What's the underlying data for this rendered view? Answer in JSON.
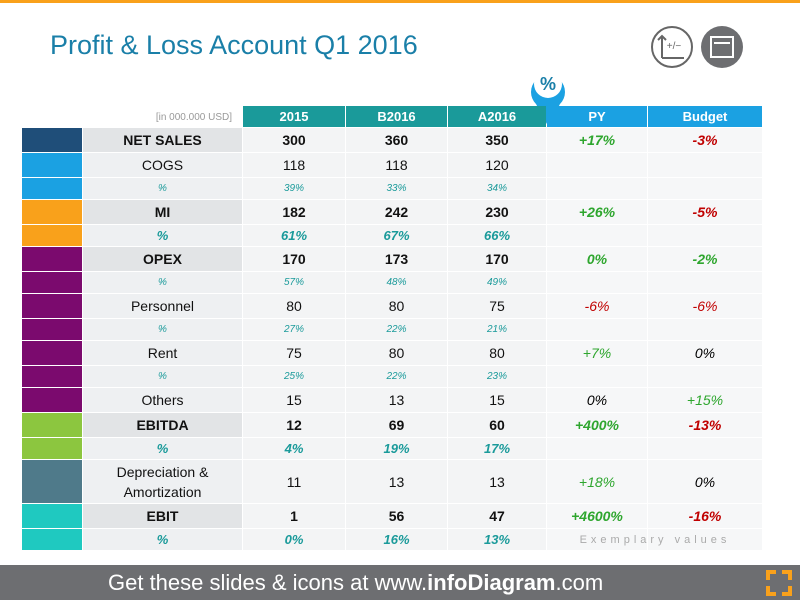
{
  "title": "Profit & Loss Account Q1 2016",
  "marker": "%",
  "table": {
    "unit": "[in 000.000 USD]",
    "columns": [
      "2015",
      "B2016",
      "A2016",
      "PY",
      "Budget"
    ],
    "note": "Exemplary values",
    "rows": [
      {
        "label": "NET SALES",
        "color": "#1f4e79",
        "bold": true,
        "values": [
          "300",
          "360",
          "350"
        ],
        "py": "+17%",
        "py_color": "#2ea62e",
        "budget": "-3%",
        "budget_color": "#c00000"
      },
      {
        "label": "COGS",
        "color": "#1ba1e2",
        "values": [
          "118",
          "118",
          "120"
        ]
      },
      {
        "label": "%",
        "color": "#1ba1e2",
        "pct": true,
        "values": [
          "39%",
          "33%",
          "34%"
        ]
      },
      {
        "label": "MI",
        "color": "#f9a11b",
        "bold": true,
        "values": [
          "182",
          "242",
          "230"
        ],
        "py": "+26%",
        "py_color": "#2ea62e",
        "budget": "-5%",
        "budget_color": "#c00000"
      },
      {
        "label": "%",
        "color": "#f9a11b",
        "pct": true,
        "bold": true,
        "values": [
          "61%",
          "67%",
          "66%"
        ]
      },
      {
        "label": "OPEX",
        "color": "#7b0a6e",
        "bold": true,
        "values": [
          "170",
          "173",
          "170"
        ],
        "py": "0%",
        "py_color": "#2ea62e",
        "budget": "-2%",
        "budget_color": "#2ea62e"
      },
      {
        "label": "%",
        "color": "#7b0a6e",
        "pct": true,
        "values": [
          "57%",
          "48%",
          "49%"
        ]
      },
      {
        "label": "Personnel",
        "color": "#7b0a6e",
        "values": [
          "80",
          "80",
          "75"
        ],
        "py": "-6%",
        "py_color": "#c00000",
        "budget": "-6%",
        "budget_color": "#c00000"
      },
      {
        "label": "%",
        "color": "#7b0a6e",
        "pct": true,
        "values": [
          "27%",
          "22%",
          "21%"
        ]
      },
      {
        "label": "Rent",
        "color": "#7b0a6e",
        "values": [
          "75",
          "80",
          "80"
        ],
        "py": "+7%",
        "py_color": "#2ea62e",
        "budget": "0%",
        "budget_color": "#000000"
      },
      {
        "label": "%",
        "color": "#7b0a6e",
        "pct": true,
        "values": [
          "25%",
          "22%",
          "23%"
        ]
      },
      {
        "label": "Others",
        "color": "#7b0a6e",
        "values": [
          "15",
          "13",
          "15"
        ],
        "py": "0%",
        "py_color": "#000000",
        "budget": "+15%",
        "budget_color": "#2ea62e"
      },
      {
        "label": "EBITDA",
        "color": "#8cc63f",
        "bold": true,
        "values": [
          "12",
          "69",
          "60"
        ],
        "py": "+400%",
        "py_color": "#2ea62e",
        "budget": "-13%",
        "budget_color": "#c00000"
      },
      {
        "label": "%",
        "color": "#8cc63f",
        "pct": true,
        "bold": true,
        "values": [
          "4%",
          "19%",
          "17%"
        ]
      },
      {
        "label": "Depreciation & Amortization",
        "color": "#4f7a8a",
        "tall": true,
        "values": [
          "11",
          "13",
          "13"
        ],
        "py": "+18%",
        "py_color": "#2ea62e",
        "budget": "0%",
        "budget_color": "#000000"
      },
      {
        "label": "EBIT",
        "color": "#1fc9c0",
        "bold": true,
        "values": [
          "1",
          "56",
          "47"
        ],
        "py": "+4600%",
        "py_color": "#2ea62e",
        "budget": "-16%",
        "budget_color": "#c00000"
      },
      {
        "label": "%",
        "color": "#1fc9c0",
        "pct": true,
        "bold": true,
        "values": [
          "0%",
          "16%",
          "13%"
        ]
      }
    ]
  },
  "footer": {
    "prefix": "Get these slides & icons at www.",
    "brand": "infoDiagram",
    "suffix": ".com"
  }
}
